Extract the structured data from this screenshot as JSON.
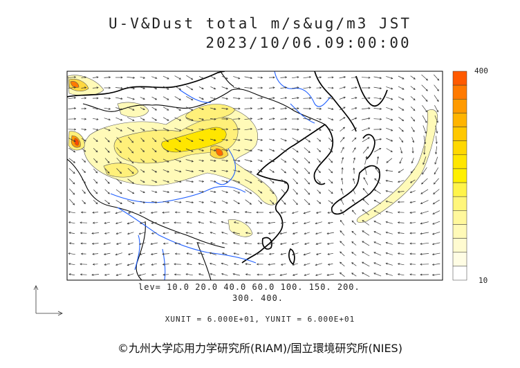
{
  "title_line1": "U-V&Dust total m/s&ug/m3 JST",
  "title_line2": "2023/10/06.09:00:00",
  "levels_label_line1": "lev= 10.0 20.0 40.0 60.0 100. 150. 200.",
  "levels_label_line2": "300. 400.",
  "unit_label": "XUNIT = 6.000E+01, YUNIT = 6.000E+01",
  "copyright": "©九州大学応用力学研究所(RIAM)/国立環境研究所(NIES)",
  "colorbar": {
    "max_label": "400",
    "min_label": "10",
    "colors": [
      "#ff5a00",
      "#ff7a00",
      "#ff9a00",
      "#ffb400",
      "#ffc800",
      "#ffd800",
      "#ffe600",
      "#fff000",
      "#fff44a",
      "#fff67a",
      "#fff89c",
      "#fffab8",
      "#fffbd0",
      "#fffde4",
      "#ffffff"
    ]
  },
  "colors": {
    "coast": "#000000",
    "river": "#1f5fff",
    "contour": "#333333",
    "vector": "#333333",
    "dust_light": "#fffab8",
    "dust_mid": "#fff07a",
    "dust_high": "#ffd840",
    "dust_peak": "#ff6000"
  }
}
